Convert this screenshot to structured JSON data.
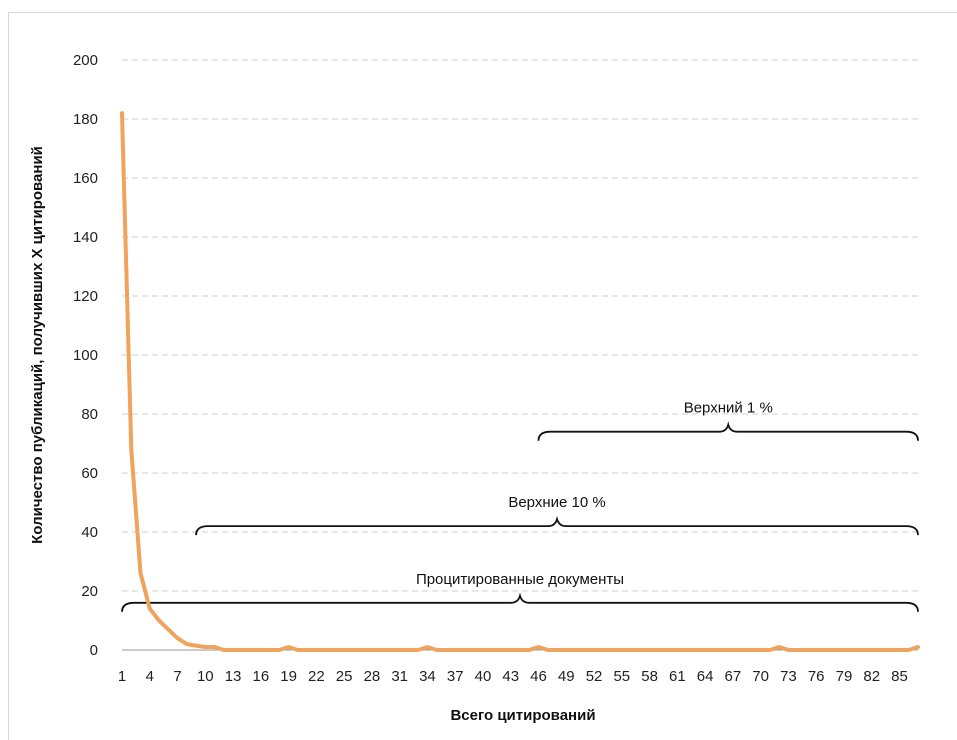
{
  "chart_data": {
    "type": "line",
    "title": "",
    "xlabel": "Всего цитирований",
    "ylabel": "Количество публикаций, получивших X цитирований",
    "ylim": [
      0,
      200
    ],
    "yticks": [
      0,
      20,
      40,
      60,
      80,
      100,
      120,
      140,
      160,
      180,
      200
    ],
    "xlim": [
      1,
      87
    ],
    "xticks": [
      1,
      4,
      7,
      10,
      13,
      16,
      19,
      22,
      25,
      28,
      31,
      34,
      37,
      40,
      43,
      46,
      49,
      52,
      55,
      58,
      61,
      64,
      67,
      70,
      73,
      76,
      79,
      82,
      85
    ],
    "grid": true,
    "line_color": "#f0a35c",
    "series": [
      {
        "x": [
          1,
          2,
          3,
          4,
          5,
          6,
          7,
          8,
          9,
          10,
          11,
          12,
          13,
          14,
          15,
          16,
          17,
          18,
          19,
          20,
          21,
          22,
          23,
          24,
          25,
          26,
          27,
          28,
          29,
          30,
          31,
          32,
          33,
          34,
          35,
          36,
          37,
          38,
          39,
          40,
          41,
          42,
          43,
          44,
          45,
          46,
          47,
          48,
          49,
          50,
          51,
          52,
          53,
          54,
          55,
          56,
          57,
          58,
          59,
          60,
          61,
          62,
          63,
          64,
          65,
          66,
          67,
          68,
          69,
          70,
          71,
          72,
          73,
          74,
          75,
          76,
          77,
          78,
          79,
          80,
          81,
          82,
          83,
          84,
          85,
          86,
          87
        ],
        "values": [
          182,
          68,
          26,
          14,
          10,
          7,
          4,
          2,
          1.5,
          1,
          1,
          0,
          0,
          0,
          0,
          0,
          0,
          0,
          1,
          0,
          0,
          0,
          0,
          0,
          0,
          0,
          0,
          0,
          0,
          0,
          0,
          0,
          0,
          1,
          0,
          0,
          0,
          0,
          0,
          0,
          0,
          0,
          0,
          0,
          0,
          1,
          0,
          0,
          0,
          0,
          0,
          0,
          0,
          0,
          0,
          0,
          0,
          0,
          0,
          0,
          0,
          0,
          0,
          0,
          0,
          0,
          0,
          0,
          0,
          0,
          0,
          1,
          0,
          0,
          0,
          0,
          0,
          0,
          0,
          0,
          0,
          0,
          0,
          0,
          0,
          0,
          1
        ]
      }
    ],
    "annotations": [
      {
        "label": "Процитированные документы",
        "x_from": 1,
        "x_to": 87,
        "y": 16
      },
      {
        "label": "Верхние 10 %",
        "x_from": 9,
        "x_to": 87,
        "y": 42
      },
      {
        "label": "Верхний 1 %",
        "x_from": 46,
        "x_to": 87,
        "y": 74
      }
    ]
  }
}
